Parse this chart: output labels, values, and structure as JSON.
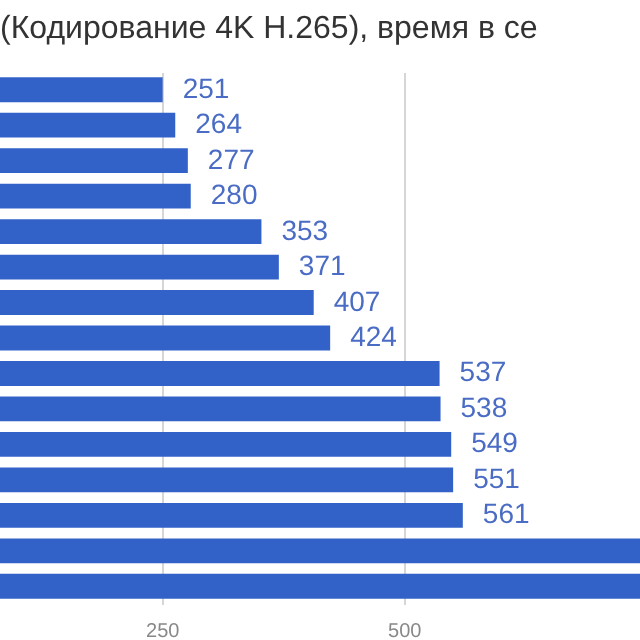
{
  "chart_data": {
    "type": "bar",
    "orientation": "horizontal",
    "title": "(Кодирование 4K H.265), время в се",
    "categories": [
      null,
      null,
      null,
      null,
      null,
      null,
      null,
      null,
      null,
      null,
      null,
      null,
      null,
      null,
      null
    ],
    "values": [
      251,
      264,
      277,
      280,
      353,
      371,
      407,
      424,
      537,
      538,
      549,
      551,
      561,
      744,
      744
    ],
    "value_labels": [
      "251",
      "264",
      "277",
      "280",
      "353",
      "371",
      "407",
      "424",
      "537",
      "538",
      "549",
      "551",
      "561",
      null,
      null
    ],
    "color": "#3262c8",
    "xlim": [
      83,
      744
    ],
    "xticks": [
      250,
      500
    ],
    "grid": "x"
  }
}
